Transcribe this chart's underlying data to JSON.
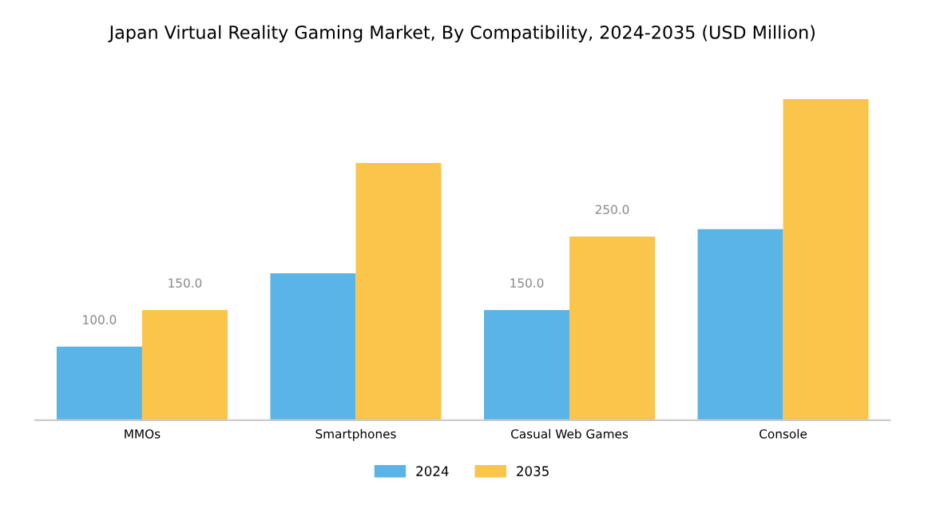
{
  "chart_data": {
    "type": "bar",
    "title": "Japan Virtual Reality Gaming Market, By Compatibility, 2024-2035 (USD Million)",
    "categories": [
      "MMOs",
      "Smartphones",
      "Casual Web Games",
      "Console"
    ],
    "series": [
      {
        "name": "2024",
        "color": "#5bb4e6",
        "values": [
          100,
          200,
          150,
          260
        ],
        "value_labels": [
          "100.0",
          null,
          "150.0",
          null
        ]
      },
      {
        "name": "2035",
        "color": "#fbc54b",
        "values": [
          150,
          350,
          250,
          437
        ],
        "value_labels": [
          "150.0",
          null,
          "250.0",
          null
        ]
      }
    ],
    "grid": false,
    "legend": "bottom",
    "tick_labels": "x"
  }
}
